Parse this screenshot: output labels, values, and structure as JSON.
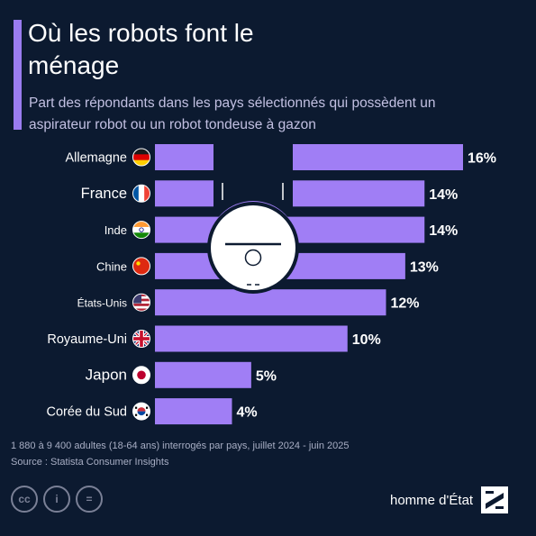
{
  "title": "Où les robots font le ménage",
  "subtitle": "Part des répondants dans les pays sélectionnés qui possèdent un aspirateur robot ou un robot tondeuse à gazon",
  "chart_data": {
    "type": "bar",
    "orientation": "horizontal",
    "categories": [
      "Allemagne",
      "France",
      "Inde",
      "Chine",
      "États-Unis",
      "Royaume-Uni",
      "Japon",
      "Corée du Sud"
    ],
    "values": [
      16,
      14,
      14,
      13,
      12,
      10,
      5,
      4
    ],
    "value_labels": [
      "16%",
      "14%",
      "14%",
      "13%",
      "12%",
      "10%",
      "5%",
      "4%"
    ],
    "flags": [
      "germany-flag",
      "france-flag",
      "india-flag",
      "china-flag",
      "usa-flag",
      "uk-flag",
      "japan-flag",
      "south-korea-flag"
    ],
    "unit": "%",
    "bar_color": "#a07ef5",
    "xlim": [
      0,
      16
    ]
  },
  "footer": {
    "note": "1 880 à 9 400 adultes (18-64 ans) interrogés par pays, juillet 2024 - juin 2025",
    "source": "Source : Statista Consumer Insights",
    "license_icons": [
      "cc-icon",
      "by-person-icon",
      "equals-icon"
    ],
    "license_symbols": [
      "cc",
      "i",
      "="
    ],
    "brand": "homme d'État"
  },
  "colors": {
    "background": "#0c1a30",
    "accent": "#9a7cf0",
    "bar": "#a07ef5",
    "subtitle": "#c2c0e2"
  }
}
